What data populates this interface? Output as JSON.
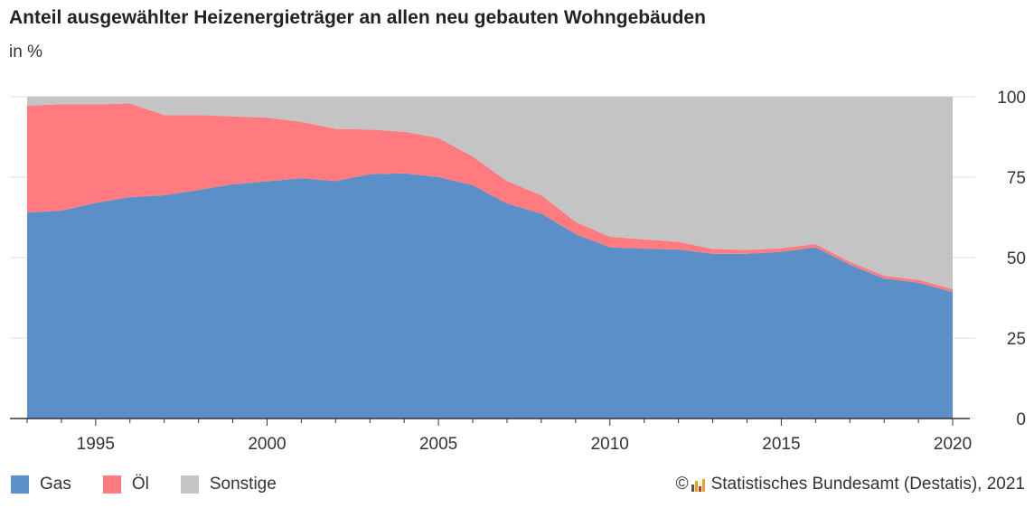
{
  "title": "Anteil ausgewählter Heizenergieträger an allen neu gebauten Wohngebäuden",
  "subtitle": "in %",
  "source": "Statistisches Bundesamt (Destatis), 2021",
  "icons": {
    "copyright": "copyright-icon",
    "logo": "destatis-logo-icon"
  },
  "colors": {
    "Gas": "#5b8fc7",
    "Öl": "#ff7b7f",
    "Sonstige": "#c4c4c4",
    "axis": "#333333",
    "grid": "#dddddd"
  },
  "chart_data": {
    "type": "area",
    "stacked": true,
    "x": [
      1993,
      1994,
      1995,
      1996,
      1997,
      1998,
      1999,
      2000,
      2001,
      2002,
      2003,
      2004,
      2005,
      2006,
      2007,
      2008,
      2009,
      2010,
      2011,
      2012,
      2013,
      2014,
      2015,
      2016,
      2017,
      2018,
      2019,
      2020
    ],
    "series": [
      {
        "name": "Gas",
        "values": [
          64,
          64.6,
          67,
          68.8,
          69.4,
          71,
          72.8,
          73.7,
          74.7,
          73.8,
          75.9,
          76.2,
          75,
          72.5,
          66.8,
          63.7,
          57.3,
          53.2,
          52.8,
          52.5,
          51.2,
          51.2,
          51.8,
          53.2,
          47.8,
          43.5,
          42.2,
          39.3
        ]
      },
      {
        "name": "Öl",
        "values": [
          33.2,
          33.1,
          30.6,
          29.1,
          24.9,
          23.3,
          21.1,
          19.8,
          17.5,
          16.2,
          13.9,
          12.9,
          12.2,
          8.9,
          7,
          5.7,
          3.8,
          3.3,
          2.9,
          2.4,
          1.5,
          1.2,
          1.1,
          1,
          0.9,
          0.9,
          0.9,
          0.9
        ]
      },
      {
        "name": "Sonstige",
        "values": [
          2.8,
          2.3,
          2.4,
          2.1,
          5.7,
          5.7,
          6.1,
          6.5,
          7.8,
          10,
          10.2,
          10.9,
          12.8,
          18.6,
          26.2,
          30.6,
          38.9,
          43.5,
          44.3,
          45.1,
          47.3,
          47.6,
          47.1,
          45.8,
          51.3,
          55.6,
          56.9,
          59.8
        ]
      }
    ],
    "x_ticks": [
      1995,
      2000,
      2005,
      2010,
      2015,
      2020
    ],
    "y_ticks": [
      0,
      25,
      50,
      75,
      100
    ],
    "ylim": [
      0,
      100
    ],
    "xlim": [
      1992.5,
      2020.5
    ],
    "y_axis_position": "right",
    "grid": true,
    "legend_position": "bottom-left",
    "xlabel": "",
    "ylabel": ""
  }
}
